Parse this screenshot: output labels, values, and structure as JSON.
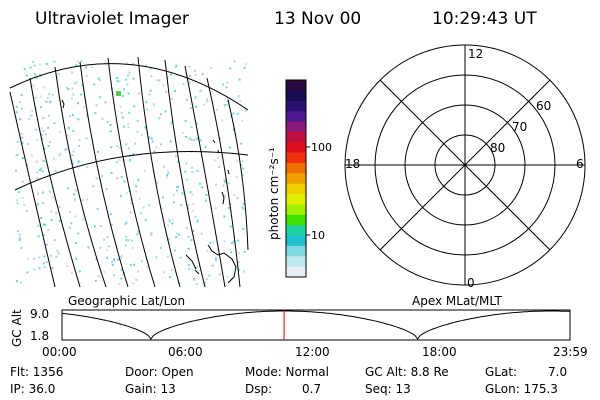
{
  "header": {
    "title": "Ultraviolet Imager",
    "date": "13 Nov 00",
    "time": "10:29:43 UT"
  },
  "colorbar": {
    "unit_label": "photon cm⁻²s⁻¹",
    "tick_labels": [
      "100",
      "10"
    ],
    "colors": [
      "#2a0a3a",
      "#1a0a50",
      "#2a1070",
      "#4a1890",
      "#8a1a7a",
      "#c01040",
      "#e01020",
      "#f03010",
      "#f07000",
      "#f0a000",
      "#f0d000",
      "#e0f000",
      "#a0f000",
      "#40e000",
      "#20d0a0",
      "#20c0d0",
      "#80d8e0",
      "#c0e8f0",
      "#e8f0f4"
    ]
  },
  "left_panel": {
    "caption": "Geographic Lat/Lon"
  },
  "right_panel": {
    "caption": "Apex MLat/MLT",
    "mlt_labels": {
      "top": "12",
      "left": "18",
      "right": "6",
      "bottom": "0"
    },
    "lat_labels": [
      "60",
      "70",
      "80"
    ]
  },
  "altitude_plot": {
    "ylabel": "GC Alt",
    "y_ticks": [
      "9.0",
      "1.8"
    ],
    "x_ticks": [
      "00:00",
      "06:00",
      "12:00",
      "18:00",
      "23:59"
    ],
    "current_time_hours": 10.495
  },
  "info": {
    "flt": "Flt: 1356",
    "ip": "IP: 36.0",
    "door": "Door: Open",
    "gain": "Gain: 13",
    "mode": "Mode: Normal",
    "dsp_label": "Dsp:",
    "dsp_value": "0.7",
    "gc_alt": "GC Alt: 8.8 Re",
    "seq": "Seq: 13",
    "glat_label": "GLat:",
    "glat_value": "7.0",
    "glon": "GLon: 175.3"
  }
}
